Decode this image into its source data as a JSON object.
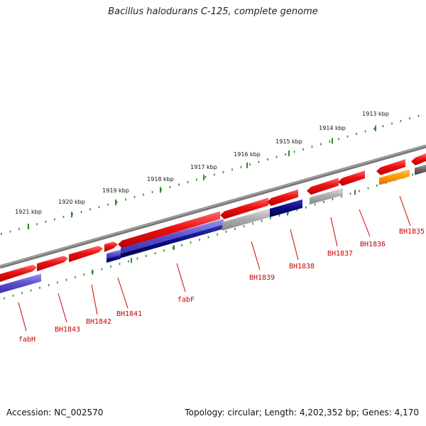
{
  "title": "Bacillus halodurans C-125, complete genome",
  "footer": {
    "accession": "Accession: NC_002570",
    "topology": "Topology: circular; Length: 4,202,352 bp; Genes: 4,170"
  },
  "colors": {
    "forward_gene": "#ee1111",
    "reverse_gene": "#5b4fd0",
    "reverse_dark": "#0a0a80",
    "grey_gene": "#aaaaaa",
    "orange_gene": "#ff9900",
    "backbone": "#777777",
    "tick": "#2a8a2a",
    "label": "#cc0000"
  },
  "kbp_labels": [
    "1913 kbp",
    "1914 kbp",
    "1915 kbp",
    "1916 kbp",
    "1917 kbp",
    "1918 kbp",
    "1919 kbp",
    "1920 kbp",
    "1921 kbp"
  ],
  "gene_labels": [
    "BH1835",
    "BH1836",
    "BH1837",
    "BH1838",
    "BH1839",
    "fabF",
    "BH1841",
    "BH1842",
    "BH1843",
    "fabH"
  ]
}
